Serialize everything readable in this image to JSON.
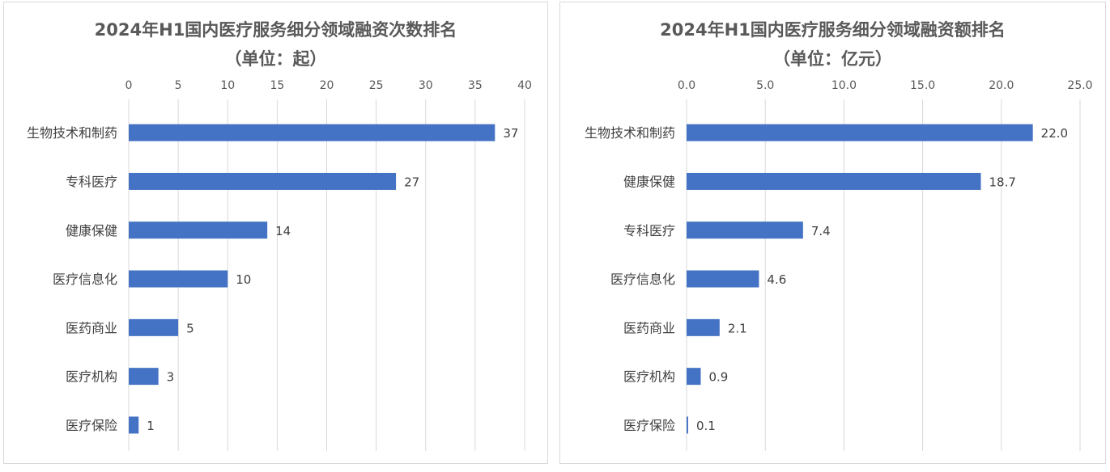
{
  "colors": {
    "bar": "#4472C4",
    "grid": "#d9d9d9",
    "text": "#595959",
    "label": "#404040"
  },
  "chart_data": [
    {
      "type": "bar",
      "orientation": "horizontal",
      "title": "2024年H1国内医疗服务细分领域融资次数排名",
      "subtitle": "（单位：起）",
      "categories": [
        "生物技术和制药",
        "专科医疗",
        "健康保健",
        "医疗信息化",
        "医药商业",
        "医疗机构",
        "医疗保险"
      ],
      "values": [
        37,
        27,
        14,
        10,
        5,
        3,
        1
      ],
      "value_labels": [
        "37",
        "27",
        "14",
        "10",
        "5",
        "3",
        "1"
      ],
      "xlim": [
        0,
        40
      ],
      "xticks": [
        0,
        5,
        10,
        15,
        20,
        25,
        30,
        35,
        40
      ],
      "xtick_labels": [
        "0",
        "5",
        "10",
        "15",
        "20",
        "25",
        "30",
        "35",
        "40"
      ],
      "axis_position": "top",
      "grid": true,
      "legend": "none"
    },
    {
      "type": "bar",
      "orientation": "horizontal",
      "title": "2024年H1国内医疗服务细分领域融资额排名",
      "subtitle": "（单位：亿元）",
      "categories": [
        "生物技术和制药",
        "健康保健",
        "专科医疗",
        "医疗信息化",
        "医药商业",
        "医疗机构",
        "医疗保险"
      ],
      "values": [
        22.0,
        18.7,
        7.4,
        4.6,
        2.1,
        0.9,
        0.1
      ],
      "value_labels": [
        "22.0",
        "18.7",
        "7.4",
        "4.6",
        "2.1",
        "0.9",
        "0.1"
      ],
      "xlim": [
        0,
        25
      ],
      "xticks": [
        0,
        5,
        10,
        15,
        20,
        25
      ],
      "xtick_labels": [
        "0.0",
        "5.0",
        "10.0",
        "15.0",
        "20.0",
        "25.0"
      ],
      "axis_position": "top",
      "grid": true,
      "legend": "none"
    }
  ]
}
